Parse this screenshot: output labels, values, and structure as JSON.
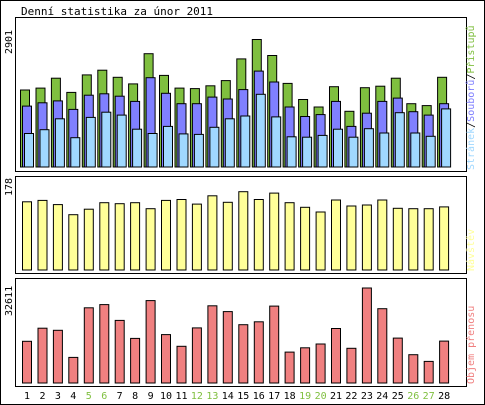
{
  "title": "Denní statistika za únor 2011",
  "colors": {
    "hits": "#7fbf3f",
    "files": "#8080ff",
    "pages": "#a0d8ff",
    "visits": "#ffff99",
    "kbytes": "#f08080",
    "weekend_label": "#7fbf3f",
    "weekday_label": "#000000",
    "border": "#000000"
  },
  "chart_data": [
    {
      "type": "bar",
      "panel": "hits-files-pages",
      "ymax_label": "2901",
      "ylim": [
        0,
        2901
      ],
      "legend": {
        "pages": "Stránek",
        "files": "Souborů",
        "hits": "Přístupů",
        "sep": "/"
      },
      "categories": [
        "1",
        "2",
        "3",
        "4",
        "5",
        "6",
        "7",
        "8",
        "9",
        "10",
        "11",
        "12",
        "13",
        "14",
        "15",
        "16",
        "17",
        "18",
        "19",
        "20",
        "21",
        "22",
        "23",
        "24",
        "25",
        "26",
        "27",
        "28"
      ],
      "weekend": [
        false,
        false,
        false,
        false,
        true,
        true,
        false,
        false,
        false,
        false,
        false,
        true,
        true,
        false,
        false,
        false,
        false,
        false,
        true,
        true,
        false,
        false,
        false,
        false,
        false,
        true,
        true,
        false
      ],
      "series": [
        {
          "name": "Přístupů",
          "key": "hits",
          "values": [
            1630,
            1670,
            1880,
            1580,
            1950,
            2050,
            1900,
            1760,
            2400,
            1940,
            1670,
            1660,
            1720,
            1830,
            2290,
            2700,
            2360,
            1770,
            1430,
            1270,
            1700,
            1180,
            1680,
            1710,
            1880,
            1340,
            1300,
            1900
          ]
        },
        {
          "name": "Souborů",
          "key": "files",
          "values": [
            1290,
            1360,
            1400,
            1220,
            1520,
            1550,
            1500,
            1390,
            1890,
            1560,
            1340,
            1340,
            1480,
            1440,
            1640,
            2030,
            1800,
            1270,
            1070,
            1110,
            1390,
            860,
            1140,
            1390,
            1460,
            1170,
            1100,
            1340
          ]
        },
        {
          "name": "Stránek",
          "key": "pages",
          "values": [
            710,
            790,
            1020,
            620,
            1050,
            1160,
            1100,
            800,
            710,
            860,
            700,
            690,
            840,
            1020,
            1080,
            1540,
            1060,
            640,
            630,
            670,
            800,
            630,
            810,
            720,
            1150,
            720,
            650,
            1230
          ]
        }
      ]
    },
    {
      "type": "bar",
      "panel": "visits",
      "ymax_label": "178",
      "ylim": [
        0,
        178
      ],
      "legend": {
        "visits": "Návštěv"
      },
      "categories": [
        "1",
        "2",
        "3",
        "4",
        "5",
        "6",
        "7",
        "8",
        "9",
        "10",
        "11",
        "12",
        "13",
        "14",
        "15",
        "16",
        "17",
        "18",
        "19",
        "20",
        "21",
        "22",
        "23",
        "24",
        "25",
        "26",
        "27",
        "28"
      ],
      "series": [
        {
          "name": "Návštěv",
          "key": "visits",
          "values": [
            148,
            151,
            142,
            120,
            132,
            146,
            144,
            146,
            133,
            151,
            153,
            143,
            161,
            147,
            170,
            153,
            167,
            146,
            136,
            126,
            152,
            139,
            141,
            152,
            134,
            133,
            133,
            137
          ]
        }
      ]
    },
    {
      "type": "bar",
      "panel": "kbytes",
      "ymax_label": "32611",
      "ylim": [
        0,
        32611
      ],
      "legend": {
        "kbytes": "Objem přenosu"
      },
      "categories": [
        "1",
        "2",
        "3",
        "4",
        "5",
        "6",
        "7",
        "8",
        "9",
        "10",
        "11",
        "12",
        "13",
        "14",
        "15",
        "16",
        "17",
        "18",
        "19",
        "20",
        "21",
        "22",
        "23",
        "24",
        "25",
        "26",
        "27",
        "28"
      ],
      "series": [
        {
          "name": "Objem přenosu",
          "key": "kbytes",
          "values": [
            14300,
            18800,
            18100,
            8800,
            25800,
            26900,
            21500,
            15300,
            28300,
            16600,
            12600,
            18900,
            26500,
            24500,
            20000,
            21000,
            26400,
            10600,
            12100,
            13400,
            18700,
            11900,
            32611,
            25500,
            15400,
            9700,
            7400,
            14400
          ]
        }
      ]
    }
  ]
}
